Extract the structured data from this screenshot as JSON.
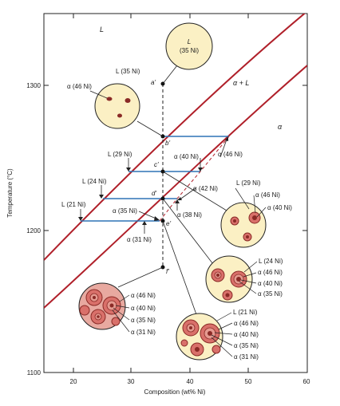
{
  "colors": {
    "liquidus": "#b0202a",
    "solidus": "#b0202a",
    "tieline": "#2e74b5",
    "cream": "#fbf0c4",
    "grain": "#d9706a",
    "grain_dark": "#b84a44",
    "grain_core": "#8a2a26"
  },
  "chart_data": {
    "type": "phase-diagram",
    "xlabel": "Composition (wt% Ni)",
    "ylabel": "Temperature (°C)",
    "xlim": [
      10,
      60
    ],
    "ylim": [
      1100,
      1350
    ],
    "x_ticks": [
      "20",
      "30",
      "40",
      "50",
      "60"
    ],
    "y_ticks": [
      "1100",
      "1200",
      "1300"
    ],
    "regions": [
      "L",
      "α + L",
      "α"
    ],
    "points": [
      "a'",
      "b'",
      "c'",
      "d'",
      "e'",
      "f'"
    ],
    "tie_lines": [
      {
        "T": 1265,
        "left_label": "",
        "right_label": "α (46 Ni)"
      },
      {
        "T": 1240,
        "left_label": "L (29 Ni)",
        "right_label": "α (40 Ni)"
      },
      {
        "T": 1220,
        "left_label": "L (24 Ni)",
        "right_label": "α (42 Ni)"
      },
      {
        "T": 1205,
        "left_label": "L (21 Ni)",
        "right_label": "α (38 Ni)"
      }
    ]
  },
  "labels": {
    "region_L": "L",
    "region_aL": "α + L",
    "region_a": "α",
    "bubble_L": "L",
    "bubble_L_comp": "(35 Ni)",
    "L35": "L (35 Ni)",
    "a46_top": "α (46 Ni)",
    "L29": "L (29 Ni)",
    "a40": "α (40 Ni)",
    "a46_right": "α (46 Ni)",
    "L24": "L (24 Ni)",
    "a42": "α (42 Ni)",
    "L21": "L (21 Ni)",
    "a35_mid": "α (35 Ni)",
    "a38": "α (38 Ni)",
    "a31_mid": "α (31 Ni)",
    "c1_L29": "L (29 Ni)",
    "c1_a46": "α (46 Ni)",
    "c1_a40": "α (40 Ni)",
    "c2_L24": "L (24 Ni)",
    "c2_a46": "α (46 Ni)",
    "c2_a40": "α (40 Ni)",
    "c2_a35": "α (35 Ni)",
    "c3_L21": "L (21 Ni)",
    "c3_a46": "α (46 Ni)",
    "c3_a40": "α (40 Ni)",
    "c3_a35": "α (35 Ni)",
    "c3_a31": "α (31 Ni)",
    "c4_a46": "α (46 Ni)",
    "c4_a40": "α (40 Ni)",
    "c4_a35": "α (35 Ni)",
    "c4_a31": "α (31 Ni)",
    "pt_a": "a'",
    "pt_b": "b'",
    "pt_c": "c'",
    "pt_d": "d'",
    "pt_e": "e'",
    "pt_f": "f'"
  }
}
